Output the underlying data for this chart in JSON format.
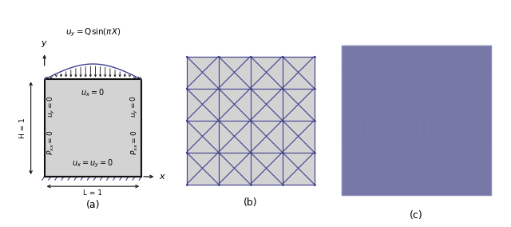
{
  "fig_width": 6.4,
  "fig_height": 2.84,
  "bg_color": "#ffffff",
  "square_color": "#d3d3d3",
  "square_edge_color": "#000000",
  "mesh_color": "#3f3f8f",
  "mesh_fine_color": "#6b6baa",
  "mesh_bg_color": "#7878a8",
  "label_a": "(a)",
  "label_b": "(b)",
  "label_c": "(c)",
  "label_H": "H = 1",
  "label_L": "L = 1",
  "label_x": "x",
  "label_y": "y",
  "n_coarse": 4,
  "n_fine": 20
}
